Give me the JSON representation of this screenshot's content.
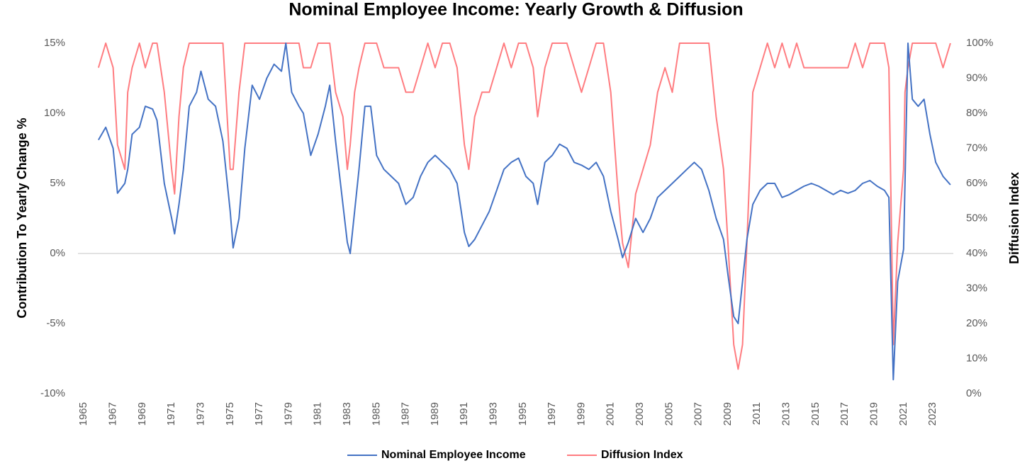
{
  "chart_data": {
    "type": "line",
    "title": "Nominal Employee Income: Yearly Growth & Diffusion",
    "ylabel": "Contribution To Yearly Change %",
    "y2label": "Diffusion Index",
    "xlim": [
      1964.6,
      2024.4
    ],
    "xticks": [
      1965,
      1967,
      1969,
      1971,
      1973,
      1975,
      1977,
      1979,
      1981,
      1983,
      1985,
      1987,
      1989,
      1991,
      1993,
      1995,
      1997,
      1999,
      2001,
      2003,
      2005,
      2007,
      2009,
      2011,
      2013,
      2015,
      2017,
      2019,
      2021,
      2023
    ],
    "ylim": [
      -10,
      15
    ],
    "yticks": [
      {
        "value": -10,
        "label": "-10%"
      },
      {
        "value": -5,
        "label": "-5%"
      },
      {
        "value": 0,
        "label": "0%"
      },
      {
        "value": 5,
        "label": "5%"
      },
      {
        "value": 10,
        "label": "10%"
      },
      {
        "value": 15,
        "label": "15%"
      }
    ],
    "y2lim": [
      0,
      100
    ],
    "y2ticks": [
      {
        "value": 0,
        "label": "0%"
      },
      {
        "value": 10,
        "label": "10%"
      },
      {
        "value": 20,
        "label": "20%"
      },
      {
        "value": 30,
        "label": "30%"
      },
      {
        "value": 40,
        "label": "40%"
      },
      {
        "value": 50,
        "label": "50%"
      },
      {
        "value": 60,
        "label": "60%"
      },
      {
        "value": 70,
        "label": "70%"
      },
      {
        "value": 80,
        "label": "80%"
      },
      {
        "value": 90,
        "label": "90%"
      },
      {
        "value": 100,
        "label": "100%"
      }
    ],
    "legend": "bottom",
    "x": [
      1966.0,
      1966.5,
      1967.0,
      1967.3,
      1967.8,
      1968.0,
      1968.3,
      1968.8,
      1969.2,
      1969.7,
      1970.0,
      1970.5,
      1971.0,
      1971.2,
      1971.5,
      1971.8,
      1972.2,
      1972.7,
      1973.0,
      1973.5,
      1974.0,
      1974.5,
      1975.0,
      1975.2,
      1975.6,
      1976.0,
      1976.5,
      1977.0,
      1977.5,
      1978.0,
      1978.5,
      1978.8,
      1979.2,
      1979.7,
      1980.0,
      1980.5,
      1981.0,
      1981.5,
      1981.8,
      1982.2,
      1982.7,
      1983.0,
      1983.2,
      1983.5,
      1983.8,
      1984.2,
      1984.6,
      1985.0,
      1985.5,
      1986.0,
      1986.5,
      1987.0,
      1987.5,
      1988.0,
      1988.5,
      1989.0,
      1989.5,
      1990.0,
      1990.5,
      1991.0,
      1991.3,
      1991.7,
      1992.2,
      1992.7,
      1993.2,
      1993.7,
      1994.2,
      1994.7,
      1995.2,
      1995.7,
      1996.0,
      1996.5,
      1997.0,
      1997.5,
      1998.0,
      1998.5,
      1999.0,
      1999.5,
      2000.0,
      2000.5,
      2001.0,
      2001.5,
      2001.8,
      2002.2,
      2002.7,
      2003.2,
      2003.7,
      2004.2,
      2004.7,
      2005.2,
      2005.7,
      2006.2,
      2006.7,
      2007.2,
      2007.7,
      2008.2,
      2008.7,
      2009.0,
      2009.4,
      2009.7,
      2010.0,
      2010.3,
      2010.7,
      2011.2,
      2011.7,
      2012.2,
      2012.7,
      2013.2,
      2013.7,
      2014.2,
      2014.7,
      2015.2,
      2015.7,
      2016.2,
      2016.7,
      2017.2,
      2017.7,
      2018.2,
      2018.7,
      2019.2,
      2019.7,
      2020.0,
      2020.3,
      2020.6,
      2021.0,
      2021.1,
      2021.3,
      2021.6,
      2022.0,
      2022.4,
      2022.8,
      2023.2,
      2023.7,
      2024.2
    ],
    "series": [
      {
        "name": "Nominal Employee Income",
        "color": "#4472c4",
        "axis": "y",
        "values": [
          8.1,
          9.0,
          7.5,
          4.3,
          5.0,
          6.0,
          8.5,
          9.0,
          10.5,
          10.3,
          9.5,
          5.0,
          2.5,
          1.4,
          3.5,
          6.0,
          10.5,
          11.5,
          13.0,
          11.0,
          10.5,
          8.0,
          3.0,
          0.4,
          2.5,
          7.5,
          12.0,
          11.0,
          12.5,
          13.5,
          13.0,
          15.0,
          11.5,
          10.5,
          10.0,
          7.0,
          8.5,
          10.5,
          12.0,
          8.0,
          3.5,
          0.8,
          0.0,
          3.0,
          6.0,
          10.5,
          10.5,
          7.0,
          6.0,
          5.5,
          5.0,
          3.5,
          4.0,
          5.5,
          6.5,
          7.0,
          6.5,
          6.0,
          5.0,
          1.5,
          0.5,
          1.0,
          2.0,
          3.0,
          4.5,
          6.0,
          6.5,
          6.8,
          5.5,
          5.0,
          3.5,
          6.5,
          7.0,
          7.8,
          7.5,
          6.5,
          6.3,
          6.0,
          6.5,
          5.5,
          3.0,
          1.0,
          -0.3,
          0.8,
          2.5,
          1.5,
          2.5,
          4.0,
          4.5,
          5.0,
          5.5,
          6.0,
          6.5,
          6.0,
          4.5,
          2.5,
          1.0,
          -1.5,
          -4.5,
          -5.0,
          -2.0,
          1.0,
          3.5,
          4.5,
          5.0,
          5.0,
          4.0,
          4.2,
          4.5,
          4.8,
          5.0,
          4.8,
          4.5,
          4.2,
          4.5,
          4.3,
          4.5,
          5.0,
          5.2,
          4.8,
          4.5,
          4.0,
          -9.0,
          -2.0,
          0.3,
          5.0,
          15.0,
          11.0,
          10.5,
          11.0,
          8.5,
          6.5,
          5.5,
          4.9
        ]
      },
      {
        "name": "Diffusion Index",
        "color": "#ff7c80",
        "axis": "y2",
        "values": [
          93,
          100,
          93,
          71,
          64,
          86,
          93,
          100,
          93,
          100,
          100,
          86,
          64,
          57,
          79,
          93,
          100,
          100,
          100,
          100,
          100,
          100,
          64,
          64,
          86,
          100,
          100,
          100,
          100,
          100,
          100,
          100,
          100,
          100,
          93,
          93,
          100,
          100,
          100,
          86,
          79,
          64,
          71,
          86,
          93,
          100,
          100,
          100,
          93,
          93,
          93,
          86,
          86,
          93,
          100,
          93,
          100,
          100,
          93,
          71,
          64,
          79,
          86,
          86,
          93,
          100,
          93,
          100,
          100,
          93,
          79,
          93,
          100,
          100,
          100,
          93,
          86,
          93,
          100,
          100,
          86,
          57,
          43,
          36,
          57,
          64,
          71,
          86,
          93,
          86,
          100,
          100,
          100,
          100,
          100,
          79,
          64,
          43,
          14,
          7,
          14,
          43,
          86,
          93,
          100,
          93,
          100,
          93,
          100,
          93,
          93,
          93,
          93,
          93,
          93,
          93,
          100,
          93,
          100,
          100,
          100,
          93,
          14,
          43,
          64,
          86,
          93,
          100,
          100,
          100,
          100,
          100,
          93,
          100
        ]
      }
    ]
  }
}
